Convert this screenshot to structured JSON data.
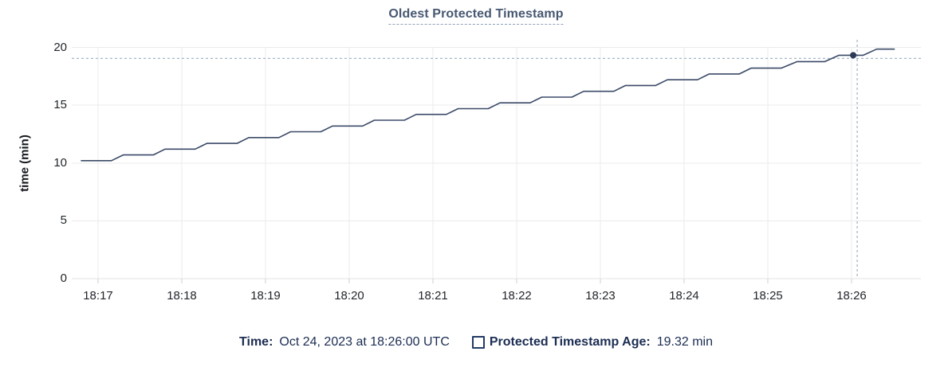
{
  "chart_data": {
    "type": "line",
    "title": "Oldest Protected Timestamp",
    "ylabel": "time (min)",
    "ylim": [
      0,
      20
    ],
    "y_ticks": [
      0,
      5,
      10,
      15,
      20
    ],
    "x_ticks": [
      "18:17",
      "18:18",
      "18:19",
      "18:20",
      "18:21",
      "18:22",
      "18:23",
      "18:24",
      "18:25",
      "18:26"
    ],
    "x_tick_minutes_after_1800": [
      17,
      18,
      19,
      20,
      21,
      22,
      23,
      24,
      25,
      26
    ],
    "grid": true,
    "legend_position": "bottom",
    "series": [
      {
        "name": "Protected Timestamp Age",
        "color": "#3b4a68",
        "points_min_after_1800": [
          [
            16.8,
            10.2
          ],
          [
            17.16,
            10.2
          ],
          [
            17.3,
            10.7
          ],
          [
            17.66,
            10.7
          ],
          [
            17.8,
            11.2
          ],
          [
            18.16,
            11.2
          ],
          [
            18.3,
            11.7
          ],
          [
            18.66,
            11.7
          ],
          [
            18.8,
            12.2
          ],
          [
            19.16,
            12.2
          ],
          [
            19.3,
            12.7
          ],
          [
            19.66,
            12.7
          ],
          [
            19.8,
            13.2
          ],
          [
            20.16,
            13.2
          ],
          [
            20.3,
            13.7
          ],
          [
            20.66,
            13.7
          ],
          [
            20.8,
            14.2
          ],
          [
            21.16,
            14.2
          ],
          [
            21.3,
            14.7
          ],
          [
            21.66,
            14.7
          ],
          [
            21.8,
            15.2
          ],
          [
            22.16,
            15.2
          ],
          [
            22.3,
            15.7
          ],
          [
            22.66,
            15.7
          ],
          [
            22.8,
            16.2
          ],
          [
            23.16,
            16.2
          ],
          [
            23.3,
            16.7
          ],
          [
            23.66,
            16.7
          ],
          [
            23.8,
            17.2
          ],
          [
            24.16,
            17.2
          ],
          [
            24.3,
            17.7
          ],
          [
            24.66,
            17.7
          ],
          [
            24.8,
            18.2
          ],
          [
            25.16,
            18.2
          ],
          [
            25.35,
            18.77
          ],
          [
            25.68,
            18.77
          ],
          [
            25.85,
            19.32
          ],
          [
            26.14,
            19.32
          ],
          [
            26.3,
            19.85
          ],
          [
            26.51,
            19.85
          ]
        ]
      }
    ],
    "hover_point": {
      "time": "18:26:00",
      "t_min_after_1800": 26.02,
      "value_min": 19.32
    }
  },
  "legend": {
    "time_label": "Time:",
    "time_value": "Oct 24, 2023 at 18:26:00 UTC",
    "series_label": "Protected Timestamp Age:",
    "series_value": "19.32 min"
  },
  "colors": {
    "title": "#475872",
    "line": "#3b4a68",
    "hover_dot": "#2c3a58",
    "crosshair": "#a4b7c6",
    "grid": "#ebebeb",
    "axis_line": "#e3e3e3",
    "tick_mark": "#cfcfcf",
    "legend_text": "#1b2d52"
  }
}
